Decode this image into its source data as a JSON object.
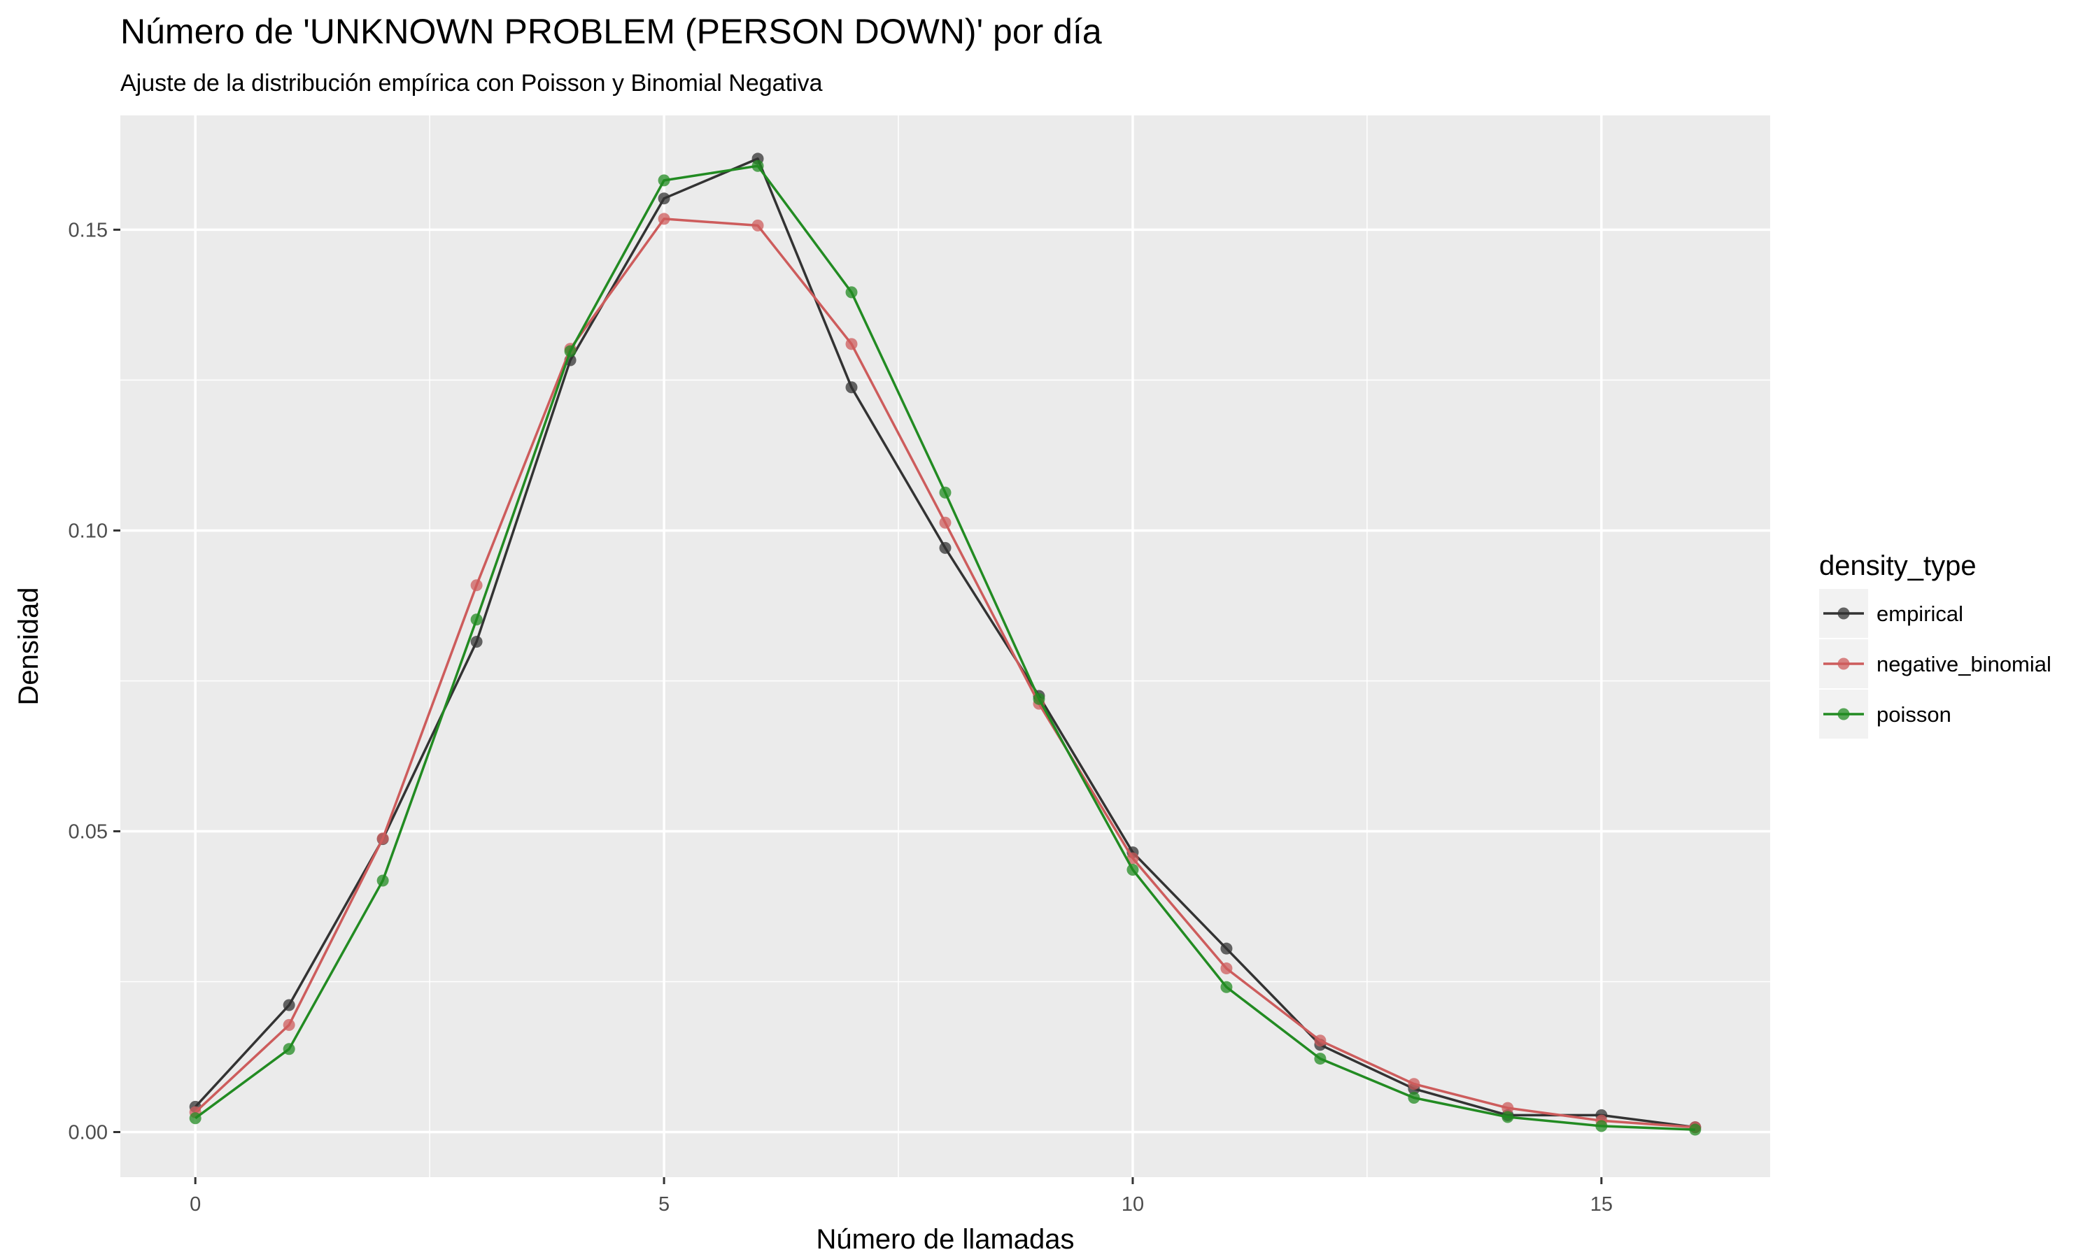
{
  "chart_data": {
    "type": "line",
    "title": "Número de 'UNKNOWN PROBLEM (PERSON DOWN)' por día",
    "subtitle": "Ajuste de la distribución empírica con Poisson y Binomial Negativa",
    "xlabel": "Número de llamadas",
    "ylabel": "Densidad",
    "xlim": [
      -0.8,
      16.8
    ],
    "ylim": [
      -0.0075,
      0.169
    ],
    "x_ticks": [
      0,
      5,
      10,
      15
    ],
    "x_tick_labels": [
      "0",
      "5",
      "10",
      "15"
    ],
    "y_ticks": [
      0,
      0.05,
      0.1,
      0.15
    ],
    "y_tick_labels": [
      "0.00",
      "0.05",
      "0.10",
      "0.15"
    ],
    "grid": true,
    "legend_title": "density_type",
    "legend_position": "right",
    "x": [
      0,
      1,
      2,
      3,
      4,
      5,
      6,
      7,
      8,
      9,
      10,
      11,
      12,
      13,
      14,
      15,
      16
    ],
    "series": [
      {
        "name": "empirical",
        "color": "#333333",
        "values": [
          0.0042,
          0.0211,
          0.0487,
          0.0815,
          0.1283,
          0.1552,
          0.1618,
          0.1238,
          0.0971,
          0.0725,
          0.0465,
          0.0305,
          0.0145,
          0.0072,
          0.0028,
          0.0028,
          0.0008
        ]
      },
      {
        "name": "negative_binomial",
        "color": "#CD5C5C",
        "values": [
          0.0033,
          0.0178,
          0.0488,
          0.0909,
          0.1302,
          0.1518,
          0.1507,
          0.131,
          0.1013,
          0.0712,
          0.0455,
          0.0272,
          0.0152,
          0.008,
          0.004,
          0.0019,
          0.0008
        ]
      },
      {
        "name": "poisson",
        "color": "#228B22",
        "values": [
          0.0023,
          0.0138,
          0.0418,
          0.0852,
          0.1298,
          0.1582,
          0.1606,
          0.1396,
          0.1063,
          0.072,
          0.0436,
          0.0241,
          0.0122,
          0.0057,
          0.0025,
          0.001,
          0.0004
        ]
      }
    ]
  }
}
